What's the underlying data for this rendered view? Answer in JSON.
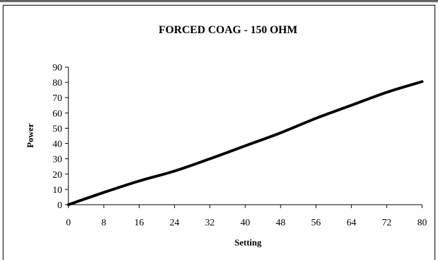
{
  "chart_data": {
    "type": "line",
    "title": "FORCED COAG - 150 OHM",
    "xlabel": "Setting",
    "ylabel": "Power",
    "xlim": [
      0,
      80
    ],
    "ylim": [
      0,
      90
    ],
    "xticks": [
      0,
      8,
      16,
      24,
      32,
      40,
      48,
      56,
      64,
      72,
      80
    ],
    "yticks": [
      0,
      10,
      20,
      30,
      40,
      50,
      60,
      70,
      80,
      90
    ],
    "grid": false,
    "legend": "none",
    "series": [
      {
        "color": "#000000",
        "x": [
          0,
          8,
          16,
          24,
          32,
          40,
          48,
          56,
          64,
          72,
          80
        ],
        "y": [
          0,
          8,
          15.5,
          22,
          30,
          38.5,
          47,
          56.5,
          65,
          73.5,
          80.5
        ]
      }
    ]
  }
}
